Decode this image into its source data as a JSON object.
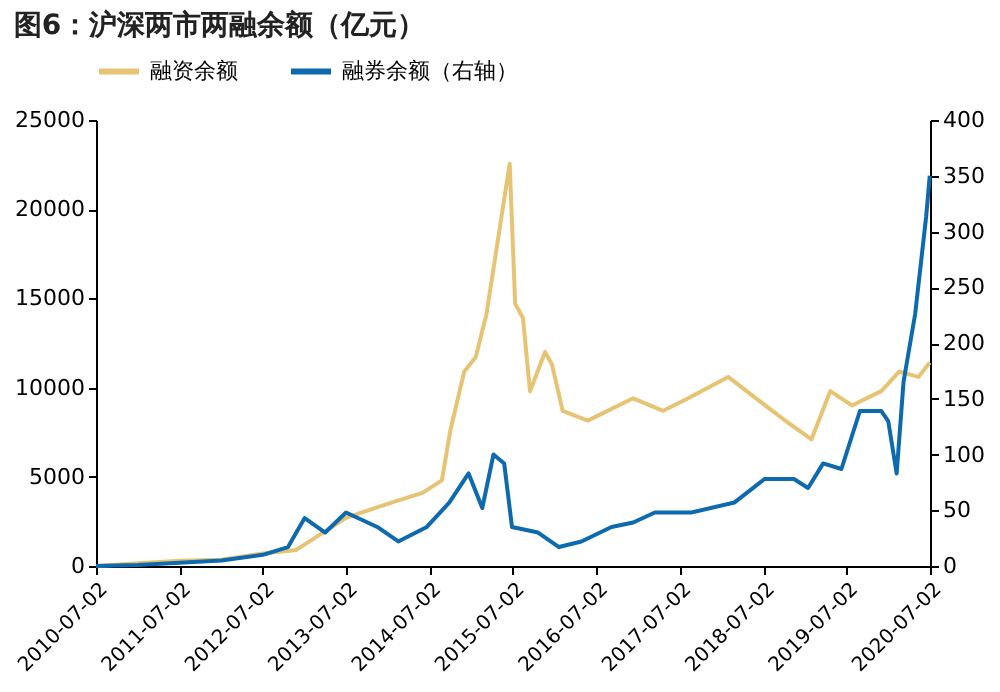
{
  "chart_data": {
    "type": "line",
    "title": "图6：沪深两市两融余额（亿元）",
    "xlim": [
      "2010-07-02",
      "2020-07-02"
    ],
    "xticks": [
      "2010-07-02",
      "2011-07-02",
      "2012-07-02",
      "2013-07-02",
      "2014-07-02",
      "2015-07-02",
      "2016-07-02",
      "2017-07-02",
      "2018-07-02",
      "2019-07-02",
      "2020-07-02"
    ],
    "ylim": [
      0,
      25000
    ],
    "yticks": [
      0,
      5000,
      10000,
      15000,
      20000,
      25000
    ],
    "y2lim": [
      0,
      400
    ],
    "y2ticks": [
      0,
      50,
      100,
      150,
      200,
      250,
      300,
      350,
      400
    ],
    "grid": false,
    "legend": "top",
    "series": [
      {
        "name": "融资余额",
        "color": "#e6c474",
        "x": [
          "2010-07-02",
          "2011-01-02",
          "2011-07-02",
          "2012-01-02",
          "2012-07-02",
          "2012-11-25",
          "2013-07-01",
          "2014-01-02",
          "2014-06-01",
          "2014-08-25",
          "2014-10-01",
          "2014-12-01",
          "2015-01-20",
          "2015-03-08",
          "2015-06-18",
          "2015-07-12",
          "2015-08-15",
          "2015-09-15",
          "2015-11-20",
          "2015-12-20",
          "2016-02-05",
          "2016-05-25",
          "2016-12-10",
          "2017-04-20",
          "2017-08-08",
          "2018-01-30",
          "2018-06-01",
          "2018-10-12",
          "2019-01-30",
          "2019-04-22",
          "2019-07-26",
          "2019-12-02",
          "2020-02-18",
          "2020-05-12",
          "2020-07-01"
        ],
        "values": [
          0,
          150,
          300,
          350,
          700,
          900,
          2700,
          3500,
          4100,
          4800,
          7600,
          10900,
          11700,
          14100,
          22550,
          14700,
          13900,
          9800,
          12000,
          11300,
          8700,
          8150,
          9400,
          8700,
          9400,
          10600,
          9400,
          8100,
          7100,
          9800,
          9000,
          9800,
          10900,
          10600,
          11400
        ]
      },
      {
        "name": "融券余额（右轴）",
        "color": "#0e6aae",
        "axis": "y2",
        "x": [
          "2010-07-02",
          "2011-01-02",
          "2011-07-02",
          "2012-01-02",
          "2012-07-02",
          "2012-10-20",
          "2013-01-01",
          "2013-04-01",
          "2013-07-01",
          "2013-11-15",
          "2014-02-15",
          "2014-06-20",
          "2014-09-27",
          "2014-12-20",
          "2015-02-18",
          "2015-04-08",
          "2015-05-25",
          "2015-06-28",
          "2015-10-20",
          "2016-01-20",
          "2016-04-27",
          "2016-09-06",
          "2016-12-10",
          "2017-03-15",
          "2017-08-22",
          "2018-02-27",
          "2018-07-08",
          "2018-11-14",
          "2019-01-15",
          "2019-03-22",
          "2019-06-10",
          "2019-08-30",
          "2019-12-02",
          "2020-01-01",
          "2020-02-07",
          "2020-03-08",
          "2020-04-28",
          "2020-06-15",
          "2020-07-01"
        ],
        "values": [
          0,
          1,
          3,
          5,
          10,
          17,
          43,
          30,
          48,
          35,
          22,
          35,
          57,
          83,
          52,
          100,
          92,
          35,
          30,
          17,
          22,
          35,
          39,
          48,
          48,
          57,
          78,
          78,
          70,
          92,
          87,
          139,
          139,
          130,
          83,
          165,
          226,
          313,
          350
        ]
      }
    ]
  }
}
